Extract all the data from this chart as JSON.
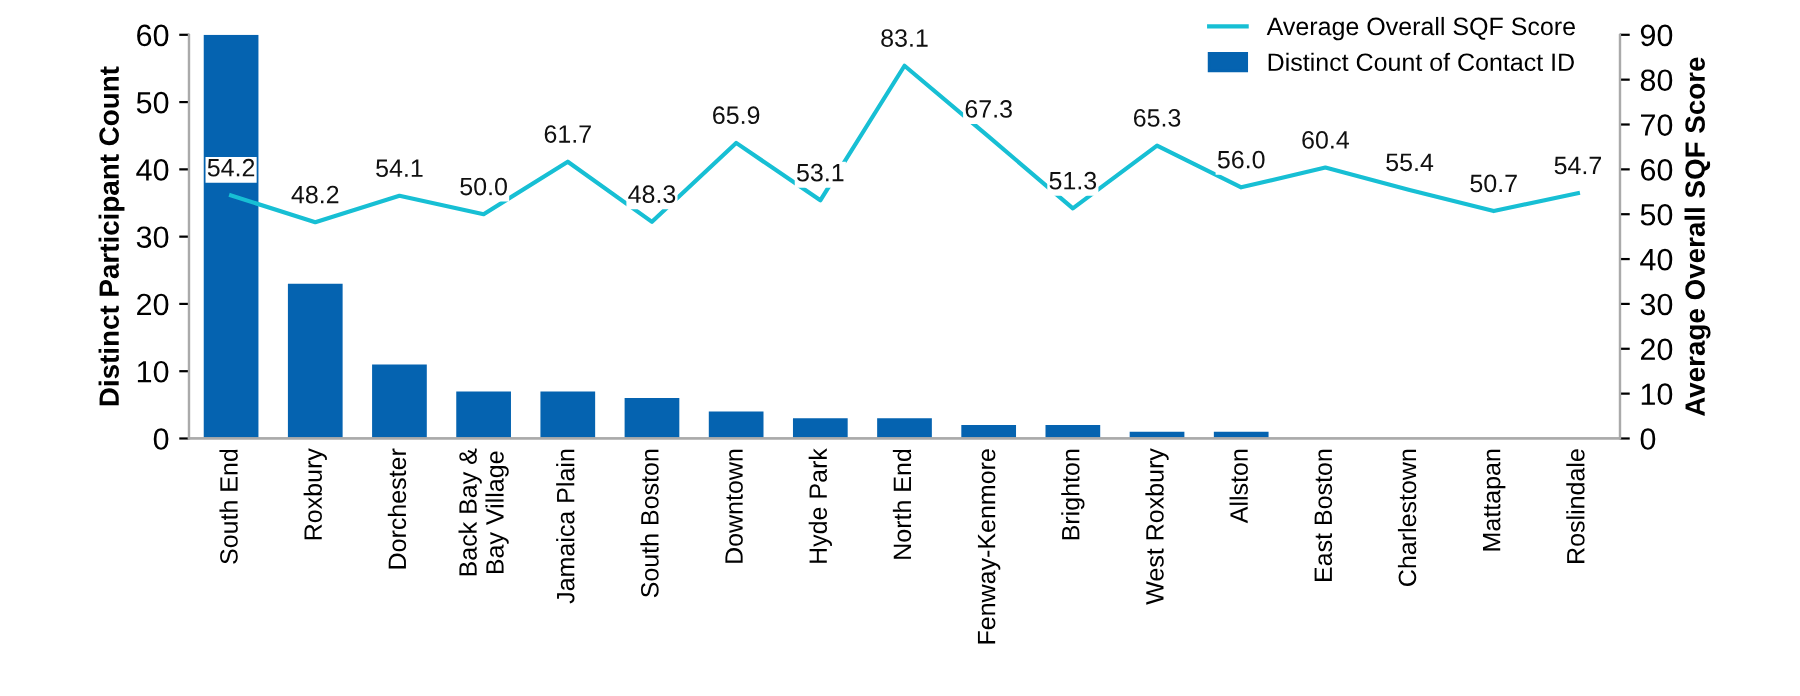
{
  "chart_data": {
    "type": "bar",
    "categories": [
      "South End",
      "Roxbury",
      "Dorchester",
      "Back Bay &\nBay Village",
      "Jamaica Plain",
      "South Boston",
      "Downtown",
      "Hyde Park",
      "North End",
      "Fenway-Kenmore",
      "Brighton",
      "West Roxbury",
      "Allston",
      "East Boston",
      "Charlestown",
      "Mattapan",
      "Roslindale"
    ],
    "series": [
      {
        "name": "Distinct Count of Contact ID",
        "color": "#0563b0",
        "values": [
          60,
          23,
          11,
          7,
          7,
          6,
          4,
          3,
          3,
          2,
          2,
          1,
          1,
          0,
          0,
          0,
          0
        ]
      },
      {
        "name": "Average Overall SQF Score",
        "type": "line",
        "axis": "y2",
        "color": "#17bfd4",
        "values": [
          54.2,
          48.2,
          54.1,
          50.0,
          61.7,
          48.3,
          65.9,
          53.1,
          83.1,
          67.3,
          51.3,
          65.3,
          56.0,
          60.4,
          55.4,
          50.7,
          54.7
        ],
        "value_labels": [
          "54.2",
          "48.2",
          "54.1",
          "50.0",
          "61.7",
          "48.3",
          "65.9",
          "53.1",
          "83.1",
          "67.3",
          "51.3",
          "65.3",
          "56.0",
          "60.4",
          "55.4",
          "50.7",
          "54.7"
        ]
      }
    ],
    "ylabel": "Distinct Participant Count",
    "y2label": "Average Overall SQF Score",
    "ylim": [
      0,
      60
    ],
    "yticks": [
      0,
      10,
      20,
      30,
      40,
      50,
      60
    ],
    "y2lim": [
      0,
      90
    ],
    "y2ticks": [
      0,
      10,
      20,
      30,
      40,
      50,
      60,
      70,
      80,
      90
    ],
    "legend": "top right",
    "grid": false,
    "marker": "none",
    "line_style": "solid"
  }
}
